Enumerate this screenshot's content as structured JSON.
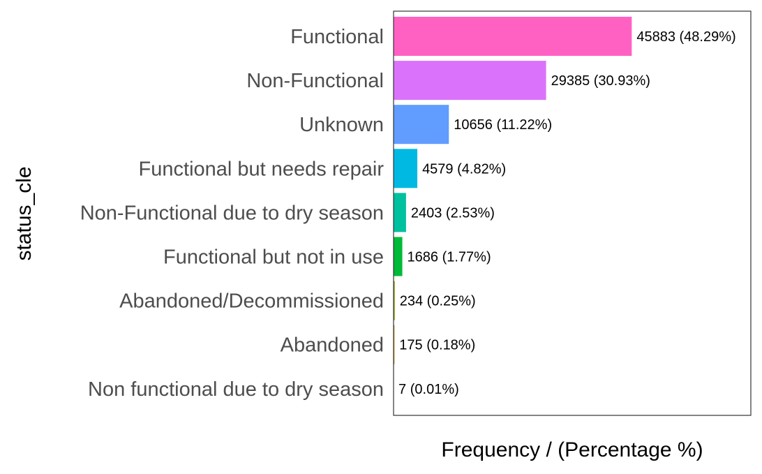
{
  "chart_data": {
    "type": "bar",
    "orientation": "horizontal",
    "xlabel": "Frequency / (Percentage %)",
    "ylabel": "status_cle",
    "categories": [
      "Functional",
      "Non-Functional",
      "Unknown",
      "Functional but needs repair",
      "Non-Functional due to dry season",
      "Functional but not in use",
      "Abandoned/Decommissioned",
      "Abandoned",
      "Non functional due to dry season"
    ],
    "values": [
      45883,
      29385,
      10656,
      4579,
      2403,
      1686,
      234,
      175,
      7
    ],
    "data_labels": [
      "45883 (48.29%)",
      "29385 (30.93%)",
      "10656 (11.22%)",
      "4579 (4.82%)",
      "2403 (2.53%)",
      "1686 (1.77%)",
      "234 (0.25%)",
      "175 (0.18%)",
      "7 (0.01%)"
    ],
    "colors": [
      "#FF61C3",
      "#DB72FB",
      "#619CFF",
      "#00B9E3",
      "#00C19F",
      "#00BA38",
      "#93AA00",
      "#D39200",
      "#F8766D"
    ],
    "xlim": [
      0,
      68825
    ],
    "grid": false,
    "legend": "none"
  }
}
